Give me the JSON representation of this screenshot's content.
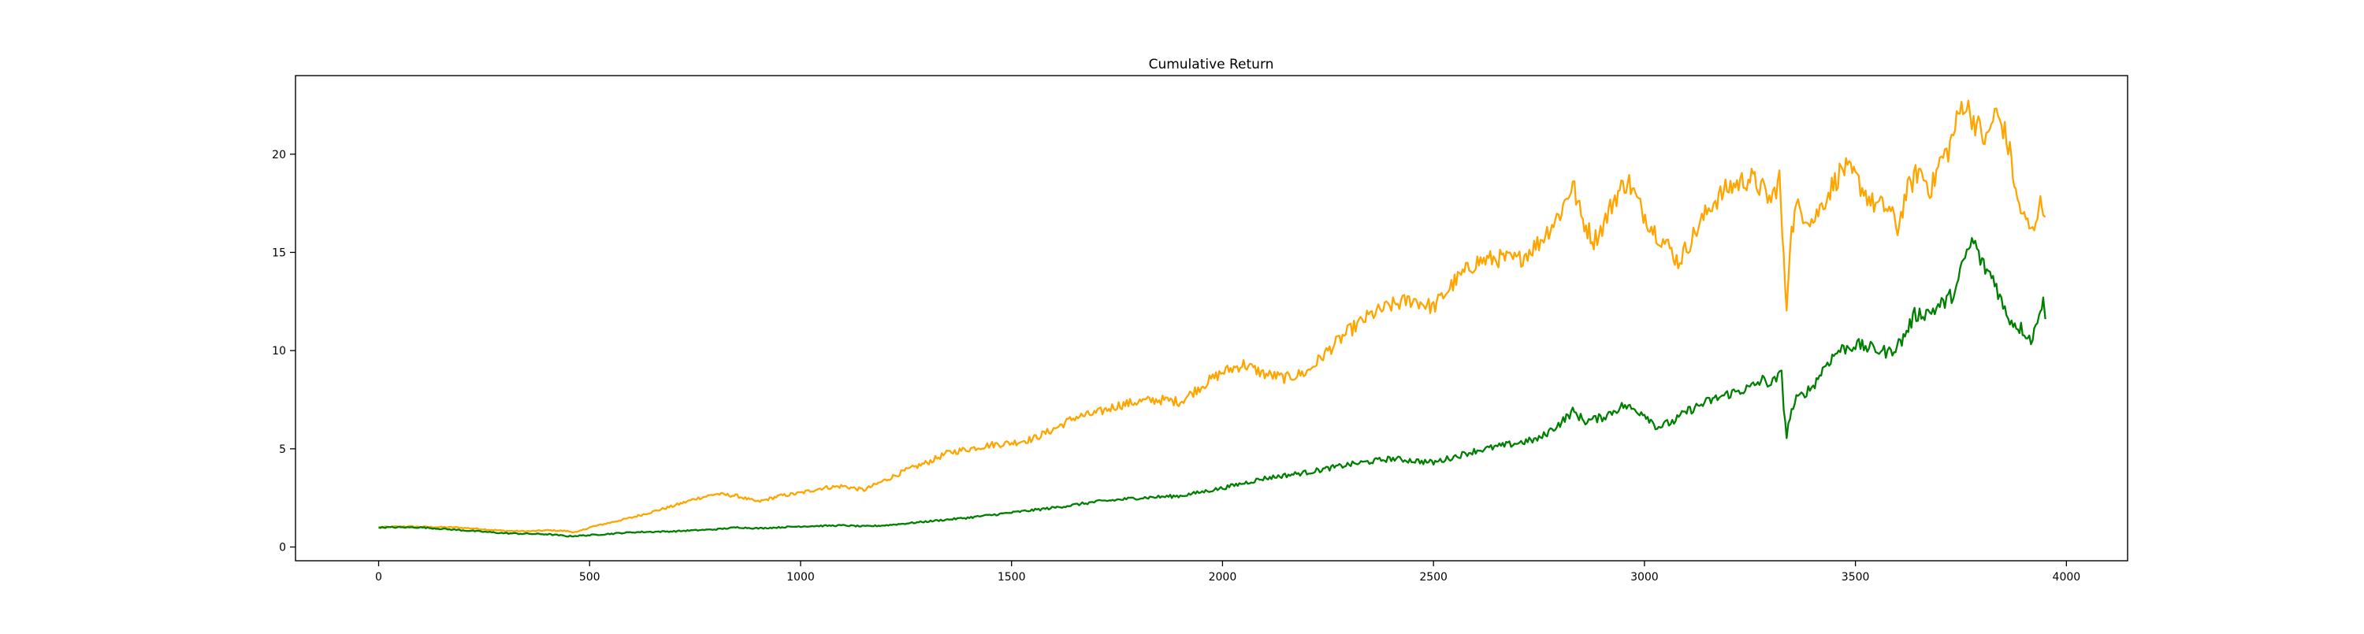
{
  "chart_data": {
    "type": "line",
    "title": "Cumulative Return",
    "xlabel": "",
    "ylabel": "",
    "xlim": [
      -197,
      4145
    ],
    "ylim": [
      -0.7,
      24.0
    ],
    "xticks": [
      0,
      500,
      1000,
      1500,
      2000,
      2500,
      3000,
      3500,
      4000
    ],
    "yticks": [
      0,
      5,
      10,
      15,
      20
    ],
    "grid": false,
    "legend": "none",
    "series": [
      {
        "color": "#ffa500",
        "points": [
          [
            0,
            1.0
          ],
          [
            60,
            1.05
          ],
          [
            120,
            1.02
          ],
          [
            180,
            1.0
          ],
          [
            240,
            0.92
          ],
          [
            300,
            0.82
          ],
          [
            360,
            0.8
          ],
          [
            400,
            0.85
          ],
          [
            440,
            0.82
          ],
          [
            470,
            0.75
          ],
          [
            500,
            1.0
          ],
          [
            550,
            1.25
          ],
          [
            600,
            1.5
          ],
          [
            650,
            1.8
          ],
          [
            700,
            2.1
          ],
          [
            750,
            2.45
          ],
          [
            800,
            2.7
          ],
          [
            850,
            2.6
          ],
          [
            880,
            2.4
          ],
          [
            900,
            2.3
          ],
          [
            950,
            2.6
          ],
          [
            1000,
            2.75
          ],
          [
            1050,
            3.0
          ],
          [
            1100,
            3.1
          ],
          [
            1150,
            2.9
          ],
          [
            1200,
            3.4
          ],
          [
            1250,
            3.9
          ],
          [
            1300,
            4.3
          ],
          [
            1350,
            4.8
          ],
          [
            1400,
            5.0
          ],
          [
            1450,
            5.2
          ],
          [
            1500,
            5.3
          ],
          [
            1550,
            5.5
          ],
          [
            1600,
            6.0
          ],
          [
            1650,
            6.6
          ],
          [
            1700,
            6.8
          ],
          [
            1750,
            7.2
          ],
          [
            1800,
            7.4
          ],
          [
            1850,
            7.5
          ],
          [
            1900,
            7.4
          ],
          [
            1950,
            8.2
          ],
          [
            2000,
            8.9
          ],
          [
            2050,
            9.3
          ],
          [
            2100,
            8.8
          ],
          [
            2150,
            8.6
          ],
          [
            2200,
            8.9
          ],
          [
            2250,
            10.0
          ],
          [
            2300,
            11.0
          ],
          [
            2350,
            11.8
          ],
          [
            2400,
            12.3
          ],
          [
            2450,
            12.6
          ],
          [
            2500,
            12.2
          ],
          [
            2550,
            13.5
          ],
          [
            2600,
            14.5
          ],
          [
            2650,
            14.7
          ],
          [
            2700,
            14.6
          ],
          [
            2750,
            15.5
          ],
          [
            2800,
            17.0
          ],
          [
            2830,
            18.5
          ],
          [
            2850,
            16.8
          ],
          [
            2880,
            15.6
          ],
          [
            2900,
            16.3
          ],
          [
            2930,
            17.8
          ],
          [
            2960,
            18.7
          ],
          [
            2990,
            17.3
          ],
          [
            3020,
            16.2
          ],
          [
            3060,
            15.2
          ],
          [
            3080,
            14.5
          ],
          [
            3120,
            16.0
          ],
          [
            3160,
            17.5
          ],
          [
            3200,
            18.3
          ],
          [
            3250,
            18.8
          ],
          [
            3280,
            18.2
          ],
          [
            3300,
            17.6
          ],
          [
            3320,
            18.8
          ],
          [
            3330,
            14.5
          ],
          [
            3337,
            12.2
          ],
          [
            3345,
            15.6
          ],
          [
            3360,
            17.3
          ],
          [
            3400,
            16.6
          ],
          [
            3440,
            18.2
          ],
          [
            3470,
            19.3
          ],
          [
            3500,
            18.8
          ],
          [
            3540,
            17.5
          ],
          [
            3580,
            17.2
          ],
          [
            3600,
            16.2
          ],
          [
            3620,
            18.0
          ],
          [
            3650,
            19.2
          ],
          [
            3680,
            18.2
          ],
          [
            3700,
            19.6
          ],
          [
            3720,
            20.2
          ],
          [
            3740,
            21.6
          ],
          [
            3755,
            22.7
          ],
          [
            3780,
            21.8
          ],
          [
            3810,
            20.6
          ],
          [
            3830,
            22.1
          ],
          [
            3850,
            21.4
          ],
          [
            3870,
            19.7
          ],
          [
            3880,
            17.9
          ],
          [
            3900,
            16.7
          ],
          [
            3920,
            16.0
          ],
          [
            3935,
            17.5
          ],
          [
            3945,
            17.2
          ],
          [
            3950,
            16.8
          ]
        ]
      },
      {
        "color": "#008000",
        "points": [
          [
            0,
            1.0
          ],
          [
            100,
            1.0
          ],
          [
            200,
            0.85
          ],
          [
            300,
            0.7
          ],
          [
            400,
            0.65
          ],
          [
            450,
            0.55
          ],
          [
            500,
            0.6
          ],
          [
            600,
            0.75
          ],
          [
            700,
            0.8
          ],
          [
            800,
            0.9
          ],
          [
            850,
            1.0
          ],
          [
            900,
            0.95
          ],
          [
            1000,
            1.05
          ],
          [
            1100,
            1.1
          ],
          [
            1150,
            1.05
          ],
          [
            1200,
            1.1
          ],
          [
            1300,
            1.3
          ],
          [
            1400,
            1.5
          ],
          [
            1500,
            1.75
          ],
          [
            1600,
            2.0
          ],
          [
            1700,
            2.3
          ],
          [
            1800,
            2.5
          ],
          [
            1900,
            2.6
          ],
          [
            2000,
            3.0
          ],
          [
            2100,
            3.5
          ],
          [
            2200,
            3.8
          ],
          [
            2250,
            4.0
          ],
          [
            2300,
            4.2
          ],
          [
            2400,
            4.5
          ],
          [
            2500,
            4.3
          ],
          [
            2600,
            4.9
          ],
          [
            2700,
            5.3
          ],
          [
            2750,
            5.5
          ],
          [
            2800,
            6.3
          ],
          [
            2830,
            6.9
          ],
          [
            2860,
            6.4
          ],
          [
            2900,
            6.6
          ],
          [
            2950,
            7.2
          ],
          [
            3000,
            6.8
          ],
          [
            3030,
            6.1
          ],
          [
            3070,
            6.4
          ],
          [
            3100,
            6.9
          ],
          [
            3150,
            7.4
          ],
          [
            3200,
            7.8
          ],
          [
            3250,
            8.1
          ],
          [
            3280,
            8.5
          ],
          [
            3300,
            8.3
          ],
          [
            3325,
            8.8
          ],
          [
            3330,
            7.2
          ],
          [
            3337,
            5.6
          ],
          [
            3345,
            6.7
          ],
          [
            3360,
            7.5
          ],
          [
            3400,
            8.2
          ],
          [
            3430,
            9.3
          ],
          [
            3460,
            10.0
          ],
          [
            3500,
            10.3
          ],
          [
            3540,
            10.1
          ],
          [
            3580,
            9.9
          ],
          [
            3610,
            10.5
          ],
          [
            3640,
            11.8
          ],
          [
            3680,
            12.0
          ],
          [
            3720,
            12.6
          ],
          [
            3740,
            13.2
          ],
          [
            3760,
            14.8
          ],
          [
            3780,
            15.6
          ],
          [
            3800,
            14.4
          ],
          [
            3830,
            13.6
          ],
          [
            3850,
            12.2
          ],
          [
            3870,
            11.5
          ],
          [
            3900,
            11.0
          ],
          [
            3920,
            10.5
          ],
          [
            3935,
            12.1
          ],
          [
            3945,
            12.4
          ],
          [
            3950,
            11.6
          ]
        ]
      }
    ]
  }
}
